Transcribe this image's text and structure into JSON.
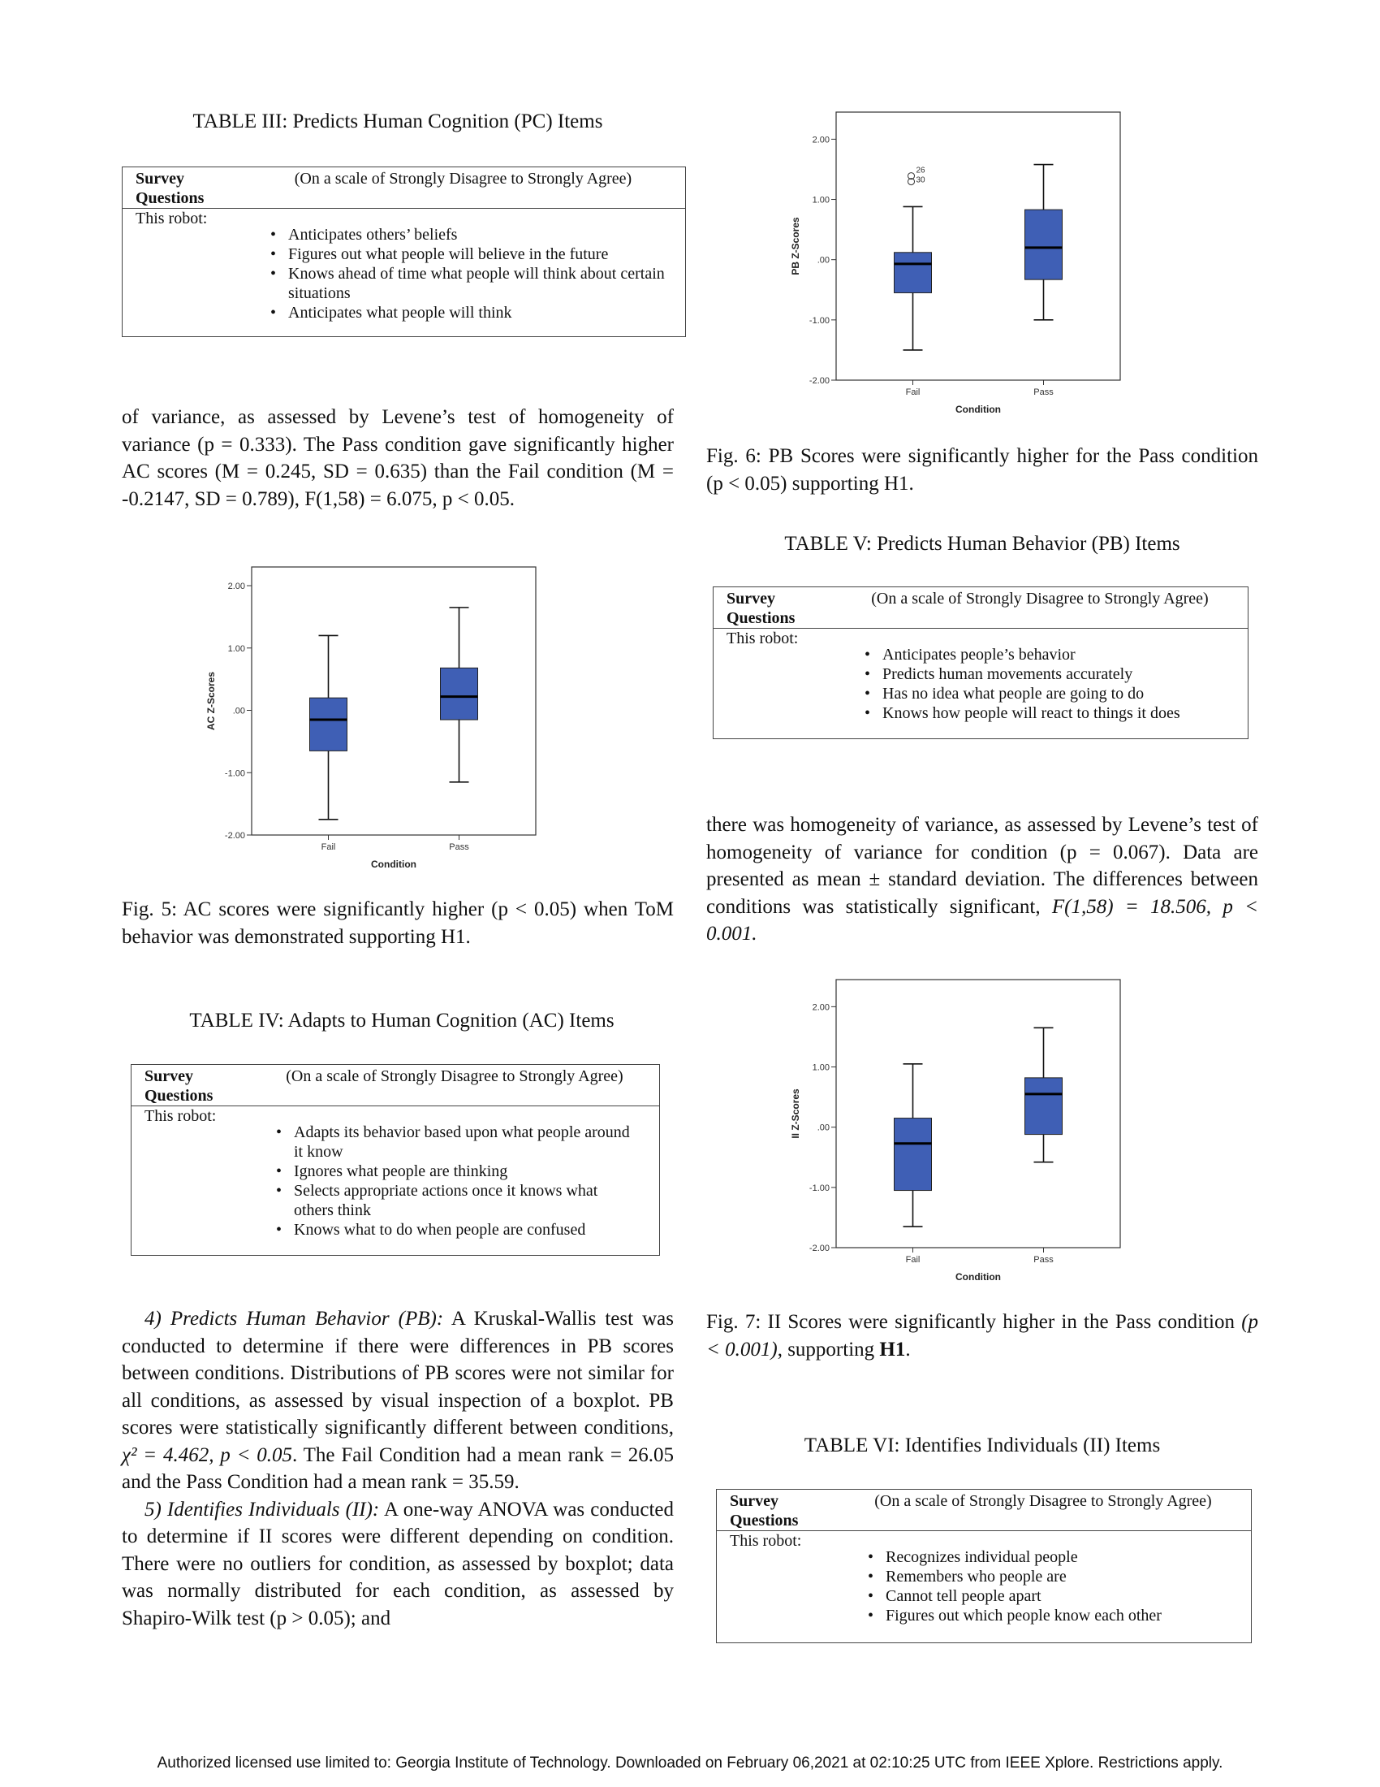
{
  "table3": {
    "caption": "TABLE III: Predicts Human Cognition (PC) Items",
    "col_questions_1": "Survey",
    "col_questions_2": "Questions",
    "col_scale": "(On a scale of Strongly Disagree to Strongly Agree)",
    "row_label": "This robot:",
    "items": [
      "Anticipates others’ beliefs",
      "Figures out what people will believe in the future",
      "Knows ahead of time what people will think about certain situations",
      "Anticipates what people will think"
    ]
  },
  "para_ac": "of variance, as assessed by Levene’s test of homogeneity of variance (p = 0.333). The Pass condition gave significantly higher AC scores (M = 0.245, SD = 0.635) than the Fail condition (M = -0.2147, SD = 0.789), F(1,58) = 6.075, p < 0.05.",
  "fig5": {
    "caption": "Fig. 5: AC scores were significantly higher (p < 0.05) when ToM behavior was demonstrated supporting H1."
  },
  "table4": {
    "caption": "TABLE IV: Adapts to Human Cognition (AC) Items",
    "col_questions_1": "Survey",
    "col_questions_2": "Questions",
    "col_scale": "(On a scale of Strongly Disagree to Strongly Agree)",
    "row_label": "This robot:",
    "items": [
      "Adapts its behavior based upon what people around it know",
      "Ignores what people are thinking",
      "Selects appropriate actions once it knows what others think",
      "Knows what to do when people are confused"
    ]
  },
  "section_pb": {
    "heading": "4) Predicts Human Behavior (PB):",
    "text_1": "A Kruskal-Wallis test was conducted to determine if there were differences in PB scores between conditions. Distributions of PB scores were not similar for all conditions, as assessed by visual inspection of a boxplot. PB scores were statistically significantly different between conditions,",
    "stat": "χ² = 4.462, p < 0.05",
    "text_2": ". The Fail Condition had a mean rank = 26.05 and the Pass Condition had a mean rank = 35.59."
  },
  "section_ii": {
    "heading": "5) Identifies Individuals (II):",
    "text": "A one-way ANOVA was conducted to determine if II scores were different depending on condition. There were no outliers for condition, as assessed by boxplot; data was normally distributed for each condition, as assessed by Shapiro-Wilk test (p > 0.05); and"
  },
  "fig6": {
    "caption": "Fig. 6: PB Scores were significantly higher for the Pass condition (p < 0.05) supporting H1."
  },
  "table5": {
    "caption": "TABLE V: Predicts Human Behavior (PB) Items",
    "col_questions_1": "Survey",
    "col_questions_2": "Questions",
    "col_scale": "(On a scale of Strongly Disagree to Strongly Agree)",
    "row_label": "This robot:",
    "items": [
      "Anticipates people’s behavior",
      "Predicts human movements accurately",
      "Has no idea what people are going to do",
      "Knows how people will react to things it does"
    ]
  },
  "para_ii": {
    "text": "there was homogeneity of variance, as assessed by Levene’s test of homogeneity of variance for condition (p = 0.067). Data are presented as mean ± standard deviation. The differences between conditions was statistically significant,",
    "stat": "F(1,58) = 18.506, p < 0.001."
  },
  "fig7": {
    "caption_1": "Fig. 7: II Scores were significantly higher in the Pass condition",
    "caption_stat": "(p < 0.001)",
    "caption_2": ", supporting",
    "caption_bold": "H1",
    "caption_3": "."
  },
  "table6": {
    "caption": "TABLE VI: Identifies Individuals (II) Items",
    "col_questions_1": "Survey",
    "col_questions_2": "Questions",
    "col_scale": "(On a scale of Strongly Disagree to Strongly Agree)",
    "row_label": "This robot:",
    "items": [
      "Recognizes individual people",
      "Remembers who people are",
      "Cannot tell people apart",
      "Figures out which people know each other"
    ]
  },
  "footer": "Authorized licensed use limited to: Georgia Institute of Technology. Downloaded on February 06,2021 at 02:10:25 UTC from IEEE Xplore.  Restrictions apply.",
  "chart_data": [
    {
      "type": "boxplot",
      "id": "fig5",
      "xlabel": "Condition",
      "ylabel": "AC Z-Scores",
      "ylim": [
        -2.0,
        2.3
      ],
      "yticks": [
        "2.00",
        "1.00",
        ".00",
        "-1.00",
        "-2.00"
      ],
      "ytick_values": [
        2,
        1,
        0,
        -1,
        -2
      ],
      "categories": [
        "Fail",
        "Pass"
      ],
      "boxes": [
        {
          "min": -1.75,
          "q1": -0.65,
          "median": -0.15,
          "q3": 0.2,
          "max": 1.2
        },
        {
          "min": -1.15,
          "q1": -0.15,
          "median": 0.22,
          "q3": 0.68,
          "max": 1.65
        }
      ],
      "outliers": [],
      "color": "#3f5fb5"
    },
    {
      "type": "boxplot",
      "id": "fig6",
      "xlabel": "Condition",
      "ylabel": "PB Z-Scores",
      "ylim": [
        -2.0,
        2.45
      ],
      "yticks": [
        "2.00",
        "1.00",
        ".00",
        "-1.00",
        "-2.00"
      ],
      "ytick_values": [
        2,
        1,
        0,
        -1,
        -2
      ],
      "categories": [
        "Fail",
        "Pass"
      ],
      "boxes": [
        {
          "min": -1.5,
          "q1": -0.55,
          "median": -0.07,
          "q3": 0.12,
          "max": 0.88
        },
        {
          "min": -1.0,
          "q1": -0.33,
          "median": 0.2,
          "q3": 0.83,
          "max": 1.58
        }
      ],
      "outliers": [
        {
          "category": "Fail",
          "value": 1.35,
          "labels": [
            "26",
            "30"
          ]
        }
      ],
      "color": "#3f5fb5"
    },
    {
      "type": "boxplot",
      "id": "fig7",
      "xlabel": "Condition",
      "ylabel": "II Z-Scores",
      "ylim": [
        -2.0,
        2.45
      ],
      "yticks": [
        "2.00",
        "1.00",
        ".00",
        "-1.00",
        "-2.00"
      ],
      "ytick_values": [
        2,
        1,
        0,
        -1,
        -2
      ],
      "categories": [
        "Fail",
        "Pass"
      ],
      "boxes": [
        {
          "min": -1.65,
          "q1": -1.05,
          "median": -0.27,
          "q3": 0.15,
          "max": 1.05
        },
        {
          "min": -0.58,
          "q1": -0.12,
          "median": 0.55,
          "q3": 0.82,
          "max": 1.65
        }
      ],
      "outliers": [],
      "color": "#3f5fb5"
    }
  ]
}
